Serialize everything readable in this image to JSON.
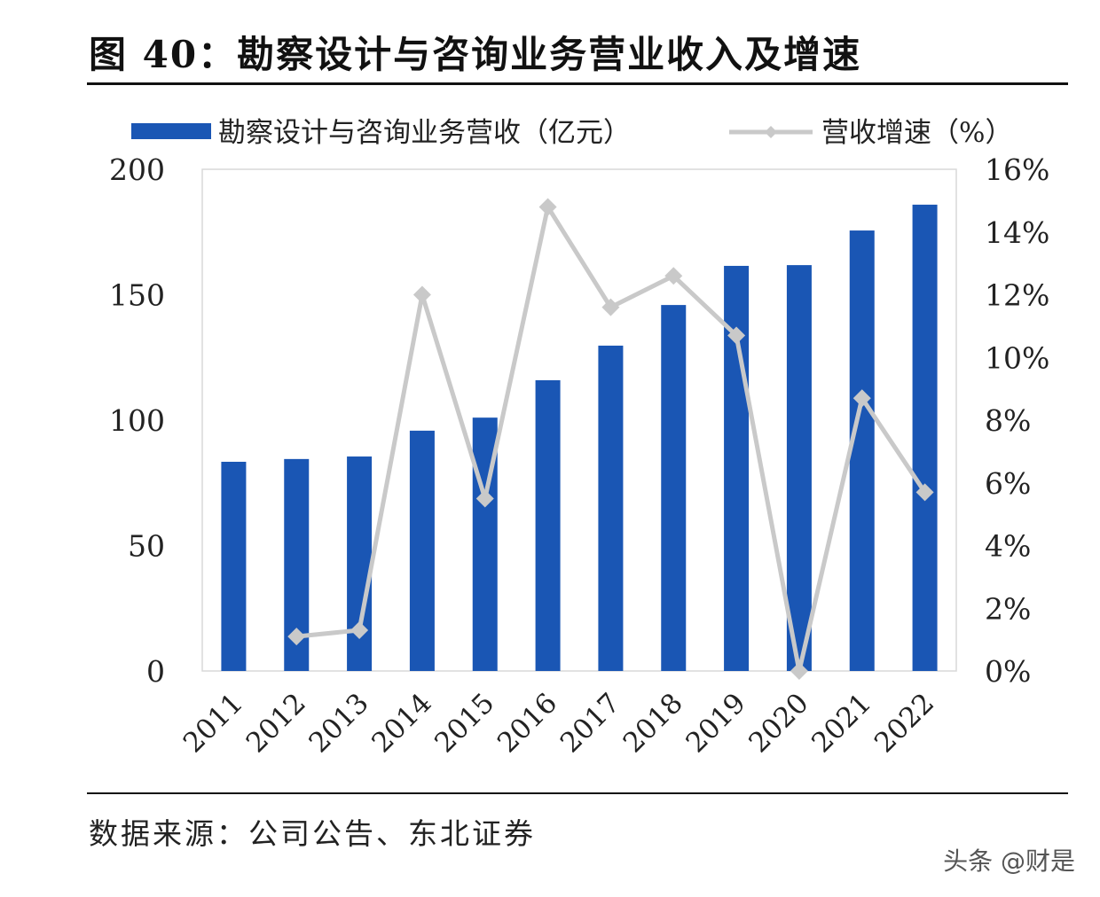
{
  "title": "图 40：勘察设计与咨询业务营业收入及增速",
  "source": "数据来源：公司公告、东北证券",
  "watermark": "头条 @财是",
  "colors": {
    "bar": "#1a56b4",
    "line": "#c9c9c9"
  },
  "chart_data": {
    "type": "bar+line",
    "categories": [
      "2011",
      "2012",
      "2013",
      "2014",
      "2015",
      "2016",
      "2017",
      "2018",
      "2019",
      "2020",
      "2021",
      "2022"
    ],
    "series": [
      {
        "name": "勘察设计与咨询业务营收（亿元）",
        "type": "bar",
        "axis": "left",
        "values": [
          83.4,
          84.5,
          85.5,
          95.8,
          101.0,
          115.9,
          129.7,
          145.9,
          161.5,
          161.8,
          175.6,
          185.9
        ]
      },
      {
        "name": "营收增速（%）",
        "type": "line",
        "axis": "right",
        "values": [
          null,
          1.1,
          1.3,
          12.0,
          5.5,
          14.8,
          11.6,
          12.6,
          10.7,
          0.0,
          8.7,
          5.7
        ]
      }
    ],
    "left_axis": {
      "min": 0,
      "max": 200,
      "ticks": [
        "0",
        "50",
        "100",
        "150",
        "200"
      ]
    },
    "right_axis": {
      "min": 0,
      "max": 16,
      "ticks": [
        "0%",
        "2%",
        "4%",
        "6%",
        "8%",
        "10%",
        "12%",
        "14%",
        "16%"
      ]
    },
    "grid": false,
    "legend": "top"
  }
}
